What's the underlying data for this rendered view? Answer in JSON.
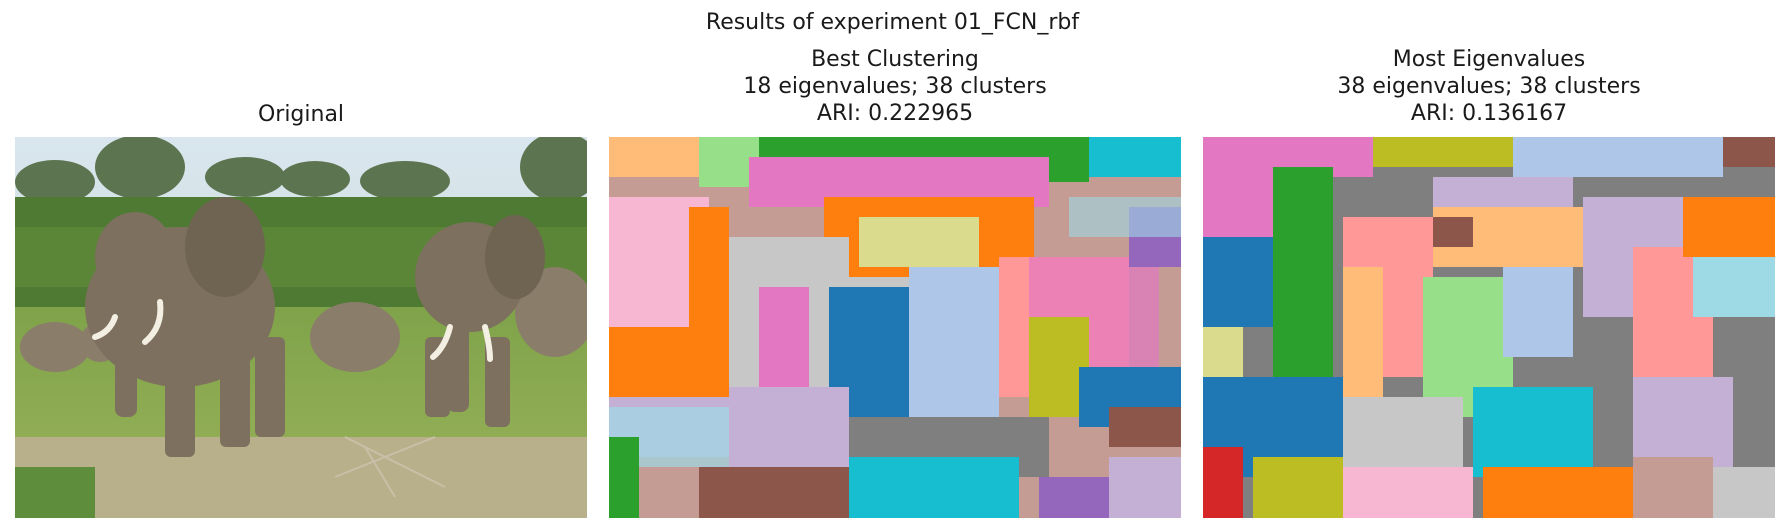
{
  "figure": {
    "suptitle": "Results of experiment 01_FCN_rbf",
    "panels": [
      {
        "title_lines": [
          "Original"
        ],
        "image": "photograph of a herd of elephants on grassland with trees behind"
      },
      {
        "title_lines": [
          "Best Clustering",
          "18 eigenvalues; 38 clusters",
          "ARI: 0.222965"
        ],
        "image": "segmentation map"
      },
      {
        "title_lines": [
          "Most Eigenvalues",
          "38 eigenvalues; 38 clusters",
          "ARI: 0.136167"
        ],
        "image": "segmentation map"
      }
    ]
  },
  "palette": [
    "#1f77b4",
    "#ff7f0e",
    "#2ca02c",
    "#d62728",
    "#9467bd",
    "#8c564b",
    "#e377c2",
    "#7f7f7f",
    "#bcbd22",
    "#17becf",
    "#aec7e8",
    "#ffbb78",
    "#98df8a",
    "#ff9896",
    "#c5b0d5",
    "#c49c94",
    "#f7b6d2",
    "#c7c7c7",
    "#dbdb8d",
    "#9edae5"
  ]
}
